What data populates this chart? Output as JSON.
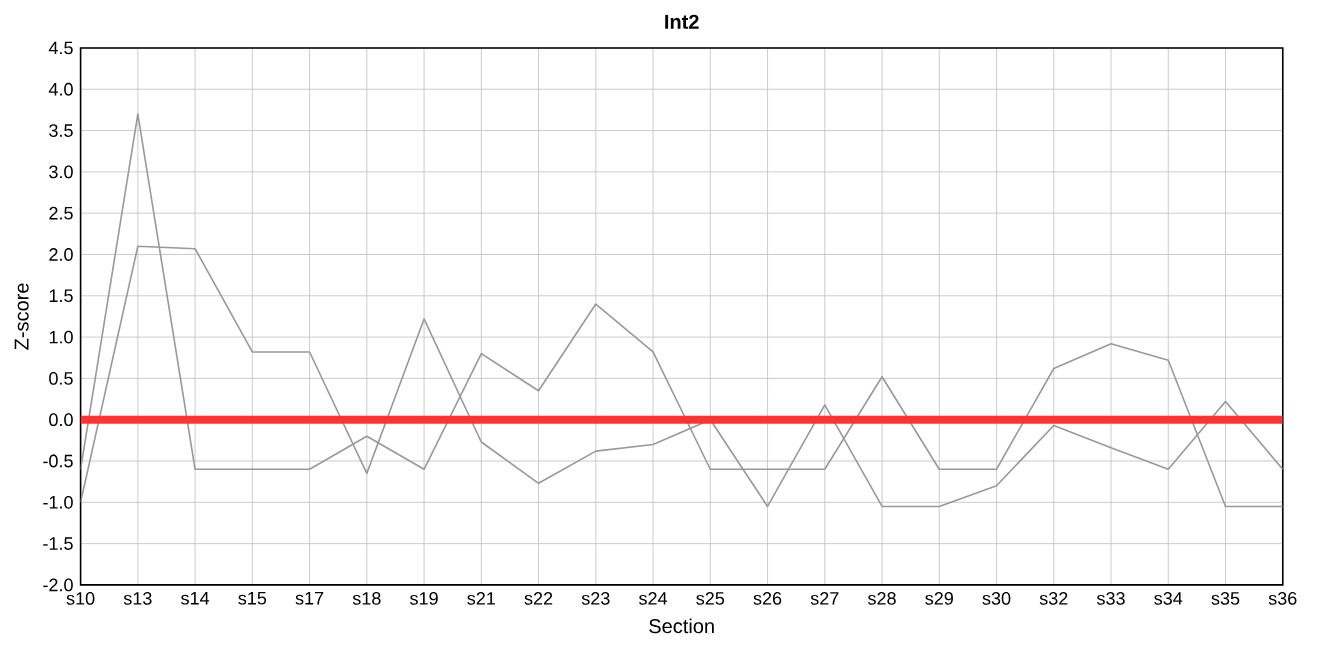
{
  "chart_data": {
    "type": "line",
    "title": "Int2",
    "xlabel": "Section",
    "ylabel": "Z-score",
    "categories": [
      "s10",
      "s13",
      "s14",
      "s15",
      "s17",
      "s18",
      "s19",
      "s21",
      "s22",
      "s23",
      "s24",
      "s25",
      "s26",
      "s27",
      "s28",
      "s29",
      "s30",
      "s32",
      "s33",
      "s34",
      "s35",
      "s36"
    ],
    "series": [
      {
        "color": "#999999",
        "values": [
          -0.6,
          3.7,
          -0.6,
          -0.6,
          -0.6,
          -0.2,
          -0.6,
          0.8,
          0.35,
          1.4,
          0.82,
          -0.6,
          -0.6,
          -0.6,
          0.52,
          -0.6,
          -0.6,
          0.62,
          0.92,
          0.72,
          -1.05,
          -1.05
        ]
      },
      {
        "color": "#999999",
        "values": [
          -1.0,
          2.1,
          2.07,
          0.82,
          0.82,
          -0.65,
          1.22,
          -0.27,
          -0.77,
          -0.38,
          -0.3,
          0.0,
          -1.05,
          0.18,
          -1.05,
          -1.05,
          -0.8,
          -0.07,
          -0.34,
          -0.6,
          0.22,
          -0.6
        ]
      }
    ],
    "ylim": [
      -2,
      4.5
    ],
    "yticks": [
      {
        "value": -2,
        "label": "-2.0"
      },
      {
        "value": -1.5,
        "label": "-1.5"
      },
      {
        "value": -1,
        "label": "-1.0"
      },
      {
        "value": -0.5,
        "label": "-0.5"
      },
      {
        "value": 0,
        "label": "0.0"
      },
      {
        "value": 0.5,
        "label": "0.5"
      },
      {
        "value": 1,
        "label": "1.0"
      },
      {
        "value": 1.5,
        "label": "1.5"
      },
      {
        "value": 2,
        "label": "2.0"
      },
      {
        "value": 2.5,
        "label": "2.5"
      },
      {
        "value": 3,
        "label": "3.0"
      },
      {
        "value": 3.5,
        "label": "3.5"
      },
      {
        "value": 4,
        "label": "4.0"
      },
      {
        "value": 4.5,
        "label": "4.5"
      }
    ],
    "grid": true,
    "marker": "none",
    "line_style": "solid",
    "ref_lines": [
      {
        "axis": "y",
        "value": 0,
        "color": "#ff3333"
      }
    ]
  }
}
